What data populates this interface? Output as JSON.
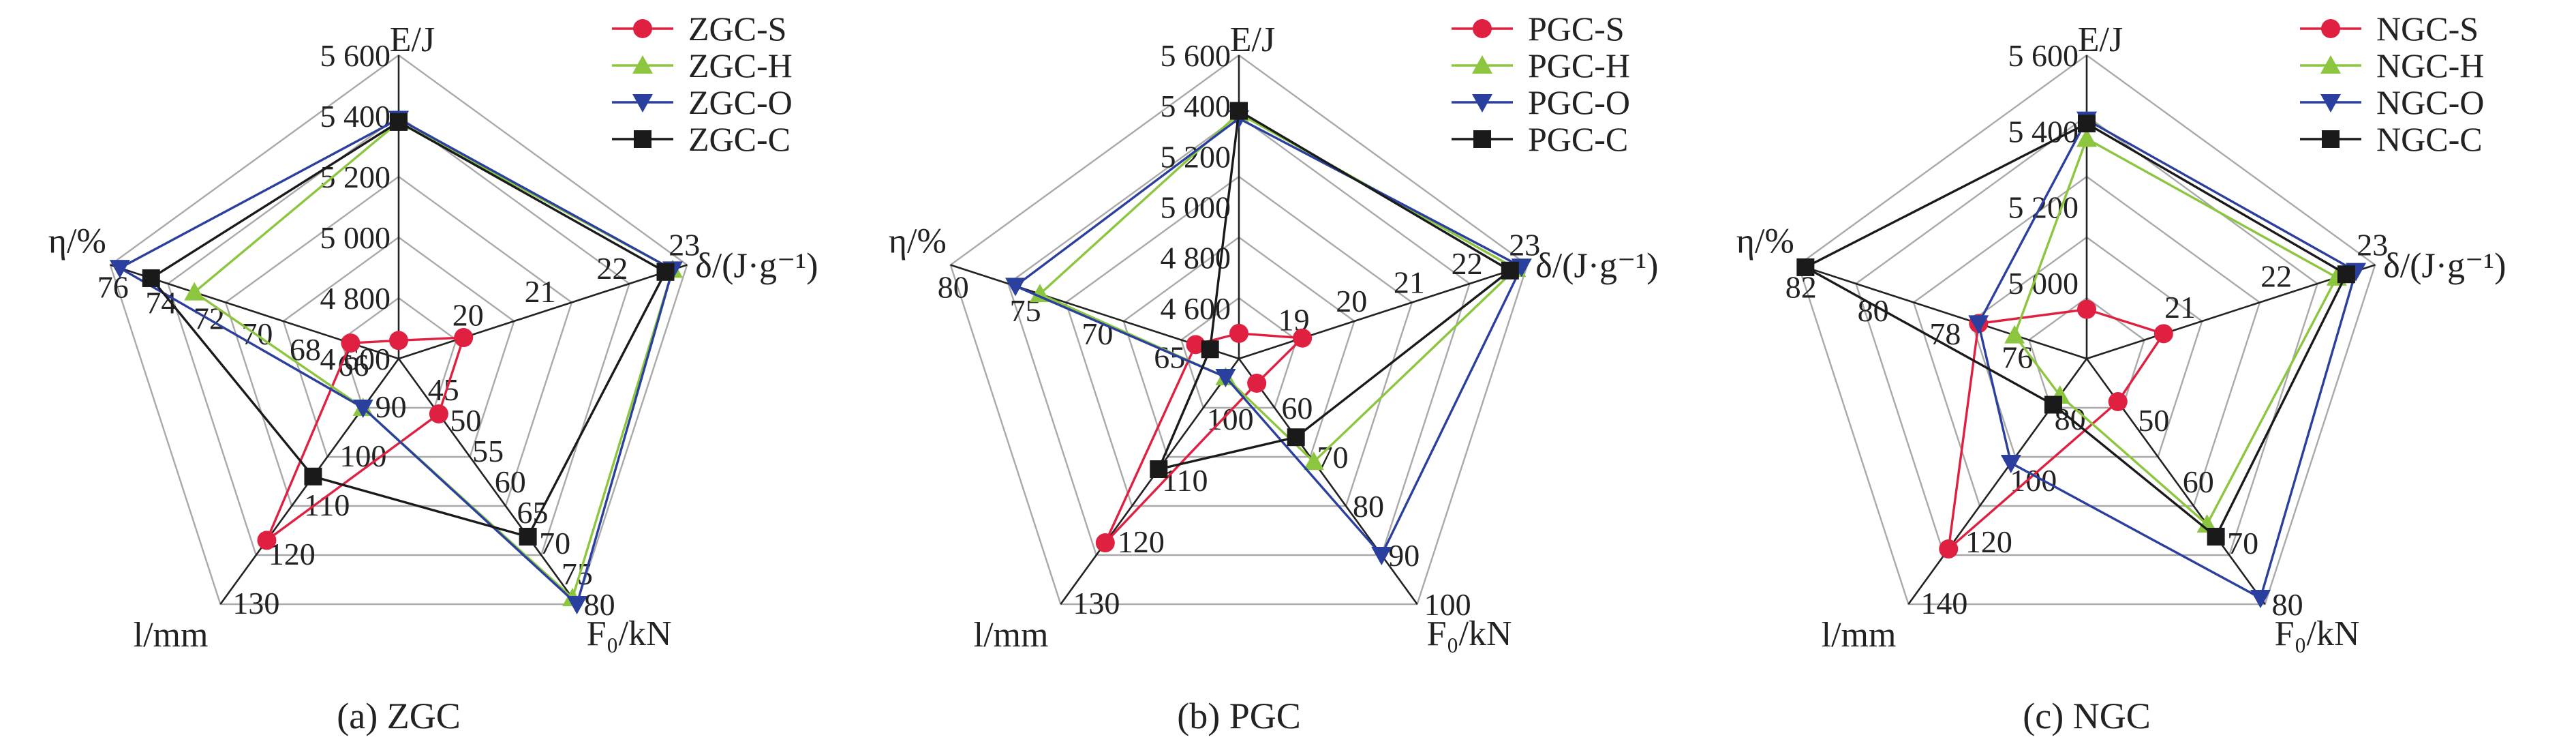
{
  "chart_data": [
    {
      "type": "radar",
      "caption": "(a) ZGC",
      "axes": [
        {
          "name": "E/J",
          "ticks": [
            "4 600",
            "4 800",
            "5 000",
            "5 200",
            "5 400",
            "5 600"
          ],
          "range": [
            4600,
            5600
          ]
        },
        {
          "name": "δ/(J·g⁻¹)",
          "ticks": [
            "20",
            "21",
            "22",
            "23"
          ],
          "range": [
            19,
            23
          ]
        },
        {
          "name": "F₀/kN",
          "ticks": [
            "45",
            "50",
            "55",
            "60",
            "65",
            "70",
            "75",
            "80"
          ],
          "range": [
            40,
            80
          ]
        },
        {
          "name": "l/mm",
          "ticks": [
            "90",
            "100",
            "110",
            "120",
            "130"
          ],
          "range": [
            80,
            130
          ]
        },
        {
          "name": "η/%",
          "ticks": [
            "66",
            "68",
            "70",
            "72",
            "74",
            "76"
          ],
          "range": [
            64,
            76
          ]
        }
      ],
      "series": [
        {
          "name": "ZGC-S",
          "color": "#e02040",
          "marker": "circle",
          "values": [
            4660,
            19.9,
            49,
            117,
            66
          ]
        },
        {
          "name": "ZGC-H",
          "color": "#8cc63f",
          "marker": "triangle-up",
          "values": [
            5380,
            22.8,
            79,
            90,
            72.5
          ]
        },
        {
          "name": "ZGC-O",
          "color": "#2a3f9e",
          "marker": "triangle-down",
          "values": [
            5390,
            22.8,
            80,
            90,
            75.6
          ]
        },
        {
          "name": "ZGC-C",
          "color": "#1a1a1a",
          "marker": "square",
          "values": [
            5380,
            22.7,
            69,
            104,
            74.3
          ]
        }
      ]
    },
    {
      "type": "radar",
      "caption": "(b) PGC",
      "axes": [
        {
          "name": "E/J",
          "ticks": [
            "4 600",
            "4 800",
            "5 000",
            "5 200",
            "5 400",
            "5 600"
          ],
          "range": [
            4400,
            5600
          ]
        },
        {
          "name": "δ/(J·g⁻¹)",
          "ticks": [
            "19",
            "20",
            "21",
            "22",
            "23"
          ],
          "range": [
            18,
            23
          ]
        },
        {
          "name": "F₀/kN",
          "ticks": [
            "60",
            "70",
            "80",
            "90",
            "100"
          ],
          "range": [
            50,
            100
          ]
        },
        {
          "name": "l/mm",
          "ticks": [
            "100",
            "110",
            "120",
            "130"
          ],
          "range": [
            90,
            130
          ]
        },
        {
          "name": "η/%",
          "ticks": [
            "65",
            "70",
            "75",
            "80"
          ],
          "range": [
            60,
            80
          ]
        }
      ],
      "series": [
        {
          "name": "PGC-S",
          "color": "#e02040",
          "marker": "circle",
          "values": [
            4500,
            19.1,
            55,
            120,
            63
          ]
        },
        {
          "name": "PGC-H",
          "color": "#8cc63f",
          "marker": "triangle-up",
          "values": [
            5370,
            22.8,
            71,
            93,
            73.8
          ]
        },
        {
          "name": "PGC-O",
          "color": "#2a3f9e",
          "marker": "triangle-down",
          "values": [
            5350,
            22.9,
            90,
            93,
            75.5
          ]
        },
        {
          "name": "PGC-C",
          "color": "#1a1a1a",
          "marker": "square",
          "values": [
            5380,
            22.7,
            66,
            108,
            62
          ]
        }
      ]
    },
    {
      "type": "radar",
      "caption": "(c) NGC",
      "axes": [
        {
          "name": "E/J",
          "ticks": [
            "5 000",
            "5 200",
            "5 400",
            "5 600"
          ],
          "range": [
            4800,
            5600
          ]
        },
        {
          "name": "δ/(J·g⁻¹)",
          "ticks": [
            "21",
            "22",
            "23"
          ],
          "range": [
            20,
            23
          ]
        },
        {
          "name": "F₀/kN",
          "ticks": [
            "50",
            "60",
            "70",
            "80"
          ],
          "range": [
            40,
            80
          ]
        },
        {
          "name": "l/mm",
          "ticks": [
            "80",
            "100",
            "120",
            "140"
          ],
          "range": [
            60,
            140
          ]
        },
        {
          "name": "η/%",
          "ticks": [
            "76",
            "78",
            "80",
            "82"
          ],
          "range": [
            74,
            82
          ]
        }
      ],
      "series": [
        {
          "name": "NGC-S",
          "color": "#e02040",
          "marker": "circle",
          "values": [
            4930,
            20.8,
            47,
            122,
            77
          ]
        },
        {
          "name": "NGC-H",
          "color": "#8cc63f",
          "marker": "triangle-up",
          "values": [
            5380,
            22.6,
            67,
            72,
            76
          ]
        },
        {
          "name": "NGC-O",
          "color": "#2a3f9e",
          "marker": "triangle-down",
          "values": [
            5430,
            22.8,
            79,
            94,
            77
          ]
        },
        {
          "name": "NGC-C",
          "color": "#1a1a1a",
          "marker": "square",
          "values": [
            5420,
            22.7,
            69,
            75,
            81.8
          ]
        }
      ]
    }
  ]
}
